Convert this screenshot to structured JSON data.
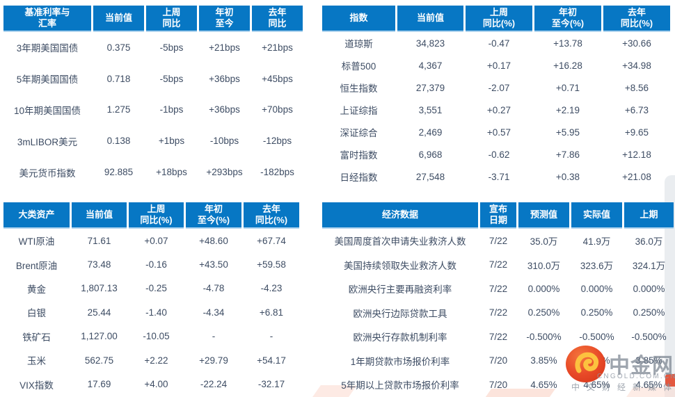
{
  "colors": {
    "header_blue": "#0777c4",
    "header_underline": "#aed3ee",
    "body_text": "#3d4c63",
    "watermark_gray": "#8a93a0",
    "logo_red": "#e2472b",
    "logo_gold": "#fcc23f",
    "ribbon_pink": "#fbd9cd"
  },
  "chart_data": [
    {
      "type": "table",
      "title": "基准利率与汇率",
      "columns": [
        "基准利率与\n汇率",
        "当前值",
        "上周\n同比",
        "年初\n至今",
        "去年\n同比"
      ],
      "rows": [
        [
          "3年期美国国债",
          "0.375",
          "-5bps",
          "+21bps",
          "+21bps"
        ],
        [
          "5年期美国国债",
          "0.718",
          "-5bps",
          "+36bps",
          "+45bps"
        ],
        [
          "10年期美国国债",
          "1.275",
          "-1bps",
          "+36bps",
          "+70bps"
        ],
        [
          "3mLIBOR美元",
          "0.138",
          "+1bps",
          "-10bps",
          "-12bps"
        ],
        [
          "美元货币指数",
          "92.885",
          "+18bps",
          "+293bps",
          "-182bps"
        ]
      ]
    },
    {
      "type": "table",
      "title": "指数",
      "columns": [
        "指数",
        "当前值",
        "上周\n同比(%)",
        "年初\n至今(%)",
        "去年\n同比(%)"
      ],
      "rows": [
        [
          "道琼斯",
          "34,823",
          "-0.47",
          "+13.78",
          "+30.66"
        ],
        [
          "标普500",
          "4,367",
          "+0.17",
          "+16.28",
          "+34.98"
        ],
        [
          "恒生指数",
          "27,379",
          "-2.07",
          "+0.71",
          "+8.56"
        ],
        [
          "上证综指",
          "3,551",
          "+0.27",
          "+2.19",
          "+6.73"
        ],
        [
          "深证综合",
          "2,469",
          "+0.57",
          "+5.95",
          "+9.65"
        ],
        [
          "富时指数",
          "6,968",
          "-0.62",
          "+7.86",
          "+12.18"
        ],
        [
          "日经指数",
          "27,548",
          "-3.71",
          "+0.38",
          "+21.08"
        ]
      ]
    },
    {
      "type": "table",
      "title": "大类资产",
      "columns": [
        "大类资产",
        "当前值",
        "上周\n同比(%)",
        "年初\n至今(%)",
        "去年\n同比(%)"
      ],
      "rows": [
        [
          "WTI原油",
          "71.61",
          "+0.07",
          "+48.60",
          "+67.74"
        ],
        [
          "Brent原油",
          "73.48",
          "-0.16",
          "+43.50",
          "+59.58"
        ],
        [
          "黄金",
          "1,807.13",
          "-0.25",
          "-4.78",
          "-4.23"
        ],
        [
          "白银",
          "25.44",
          "-1.40",
          "-4.34",
          "+6.81"
        ],
        [
          "铁矿石",
          "1,127.00",
          "-10.05",
          "-",
          "-"
        ],
        [
          "玉米",
          "562.75",
          "+2.22",
          "+29.79",
          "+54.17"
        ],
        [
          "VIX指数",
          "17.69",
          "+4.00",
          "-22.24",
          "-32.17"
        ]
      ]
    },
    {
      "type": "table",
      "title": "经济数据",
      "columns": [
        "经济数据",
        "宣布\n日期",
        "预测值",
        "实际值",
        "上期"
      ],
      "rows": [
        [
          "美国周度首次申请失业救济人数",
          "7/22",
          "35.0万",
          "41.9万",
          "36.0万"
        ],
        [
          "美国持续领取失业救济人数",
          "7/22",
          "310.0万",
          "323.6万",
          "324.1万"
        ],
        [
          "欧洲央行主要再融资利率",
          "7/22",
          "0.000%",
          "0.000%",
          "0.000%"
        ],
        [
          "欧洲央行边际贷款工具",
          "7/22",
          "0.250%",
          "0.250%",
          "0.250%"
        ],
        [
          "欧洲央行存款机制利率",
          "7/22",
          "-0.500%",
          "-0.500%",
          "-0.500%"
        ],
        [
          "1年期贷款市场报价利率",
          "7/20",
          "3.85%",
          "3.85%",
          "3.85%"
        ],
        [
          "5年期以上贷款市场报价利率",
          "7/20",
          "4.65%",
          "4.65%",
          "4.65%"
        ]
      ]
    }
  ],
  "watermark": {
    "brand": "中金网",
    "domain": "CNGOLD.COM.CN",
    "tagline": "中文财经新媒体"
  }
}
